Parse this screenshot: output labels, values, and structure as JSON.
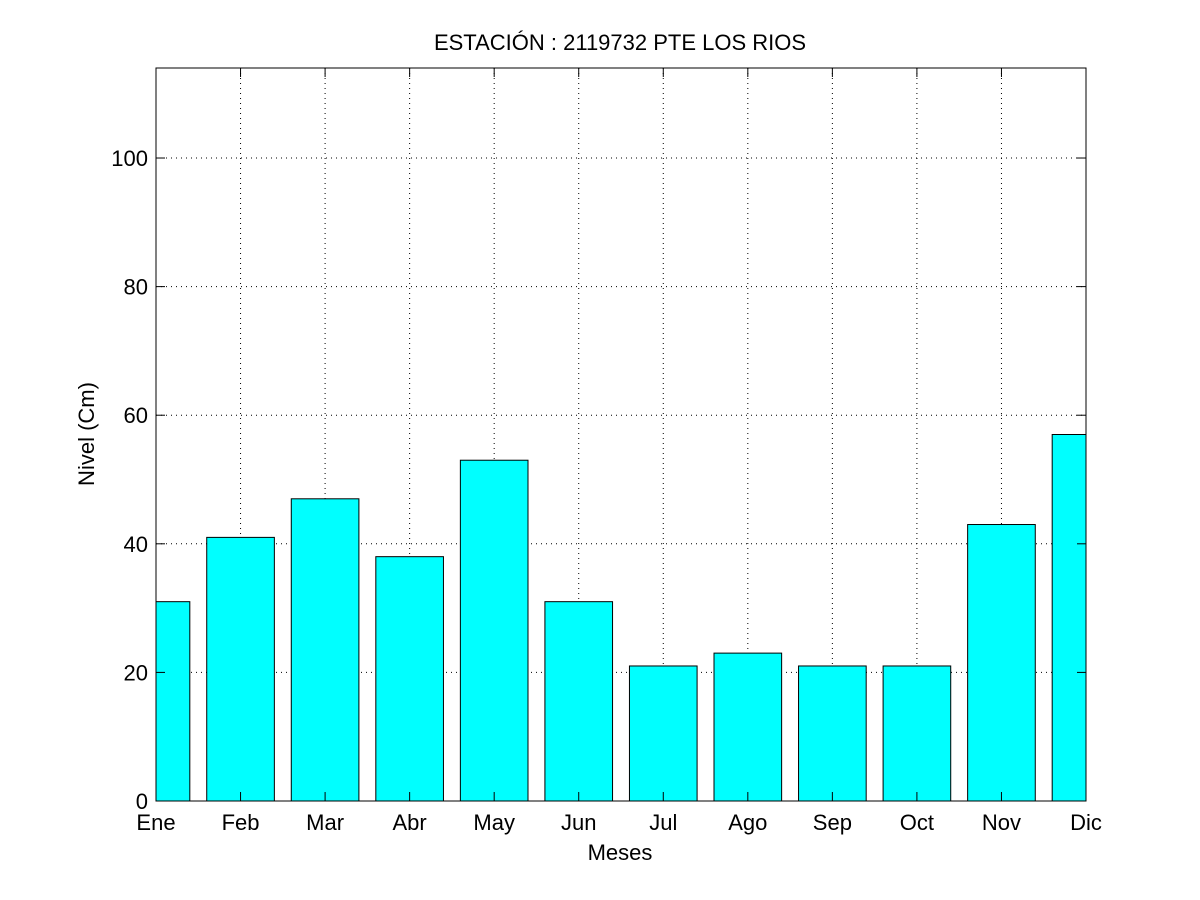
{
  "chart_data": {
    "type": "bar",
    "title": "ESTACIÓN :  2119732  PTE LOS RIOS",
    "xlabel": "Meses",
    "ylabel": "Nivel (Cm)",
    "categories": [
      "Ene",
      "Feb",
      "Mar",
      "Abr",
      "May",
      "Jun",
      "Jul",
      "Ago",
      "Sep",
      "Oct",
      "Nov",
      "Dic"
    ],
    "values": [
      31,
      41,
      47,
      38,
      53,
      31,
      21,
      23,
      21,
      21,
      43,
      57
    ],
    "ylim": [
      0,
      114
    ],
    "yticks": [
      0,
      20,
      40,
      60,
      80,
      100
    ],
    "xlim": [
      1,
      12
    ],
    "bar_color": "#00ffff",
    "grid": true
  }
}
